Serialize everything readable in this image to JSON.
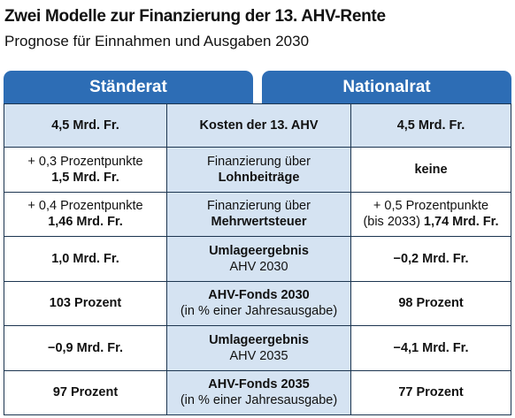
{
  "header": {
    "title": "Zwei Modelle zur Finanzierung der 13. AHV-Rente",
    "subtitle": "Prognose für Einnahmen und Ausgaben 2030"
  },
  "columns": [
    "Ständerat",
    "Nationalrat"
  ],
  "table": {
    "rows": [
      {
        "left": [
          [
            {
              "text": "4,5 Mrd. Fr.",
              "bold": true
            }
          ]
        ],
        "middle": [
          [
            {
              "text": "Kosten der 13. AHV",
              "bold": true
            }
          ]
        ],
        "right": [
          [
            {
              "text": "4,5 Mrd. Fr.",
              "bold": true
            }
          ]
        ]
      },
      {
        "left": [
          [
            {
              "text": "+ 0,3 Prozentpunkte",
              "bold": false
            }
          ],
          [
            {
              "text": "1,5 Mrd. Fr.",
              "bold": true
            }
          ]
        ],
        "middle": [
          [
            {
              "text": "Finanzierung über",
              "bold": false
            }
          ],
          [
            {
              "text": "Lohnbeiträge",
              "bold": true
            }
          ]
        ],
        "right": [
          [
            {
              "text": "keine",
              "bold": true
            }
          ]
        ]
      },
      {
        "left": [
          [
            {
              "text": "+ 0,4 Prozentpunkte",
              "bold": false
            }
          ],
          [
            {
              "text": "1,46 Mrd. Fr.",
              "bold": true
            }
          ]
        ],
        "middle": [
          [
            {
              "text": "Finanzierung über",
              "bold": false
            }
          ],
          [
            {
              "text": "Mehrwertsteuer",
              "bold": true
            }
          ]
        ],
        "right": [
          [
            {
              "text": "+ 0,5 Prozentpunkte",
              "bold": false
            }
          ],
          [
            {
              "text": "(bis 2033)",
              "bold": false
            },
            {
              "text": "1,74 Mrd. Fr.",
              "bold": true
            }
          ]
        ]
      },
      {
        "left": [
          [
            {
              "text": "1,0 Mrd. Fr.",
              "bold": true
            }
          ]
        ],
        "middle": [
          [
            {
              "text": "Umlageergebnis",
              "bold": true
            }
          ],
          [
            {
              "text": "AHV 2030",
              "bold": false
            }
          ]
        ],
        "right": [
          [
            {
              "text": "−0,2 Mrd. Fr.",
              "bold": true
            }
          ]
        ]
      },
      {
        "left": [
          [
            {
              "text": "103 Prozent",
              "bold": true
            }
          ]
        ],
        "middle": [
          [
            {
              "text": "AHV-Fonds 2030",
              "bold": true
            }
          ],
          [
            {
              "text": "(in % einer Jahresausgabe)",
              "bold": false
            }
          ]
        ],
        "right": [
          [
            {
              "text": "98 Prozent",
              "bold": true
            }
          ]
        ]
      },
      {
        "left": [
          [
            {
              "text": "−0,9 Mrd. Fr.",
              "bold": true
            }
          ]
        ],
        "middle": [
          [
            {
              "text": "Umlageergebnis",
              "bold": true
            }
          ],
          [
            {
              "text": "AHV 2035",
              "bold": false
            }
          ]
        ],
        "right": [
          [
            {
              "text": "−4,1 Mrd. Fr.",
              "bold": true
            }
          ]
        ]
      },
      {
        "left": [
          [
            {
              "text": "97 Prozent",
              "bold": true
            }
          ]
        ],
        "middle": [
          [
            {
              "text": "AHV-Fonds 2035",
              "bold": true
            }
          ],
          [
            {
              "text": "(in % einer Jahresausgabe)",
              "bold": false
            }
          ]
        ],
        "right": [
          [
            {
              "text": "77 Prozent",
              "bold": true
            }
          ]
        ]
      }
    ]
  }
}
